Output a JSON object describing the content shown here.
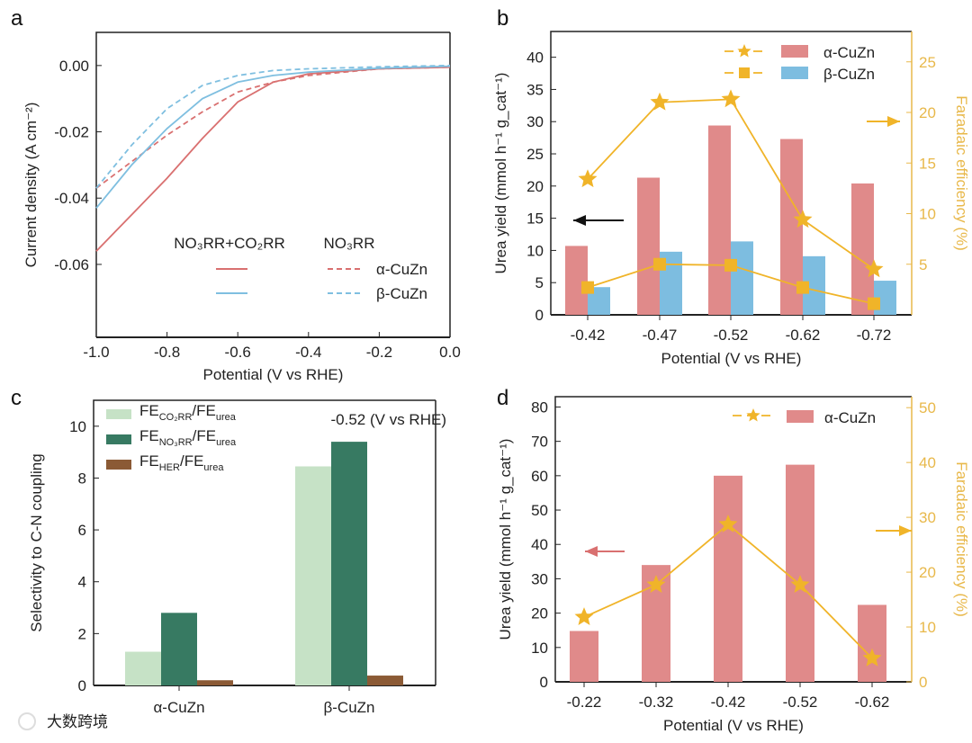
{
  "panel_labels": [
    "a",
    "b",
    "c",
    "d"
  ],
  "watermark": "大数跨境",
  "colors": {
    "alpha": "#e08a8a",
    "beta": "#7dbde0",
    "gold": "#f0b429",
    "gold_text": "#e8b84a",
    "co2rr": "#c6e2c6",
    "no3rr": "#377a62",
    "her": "#8b5a35",
    "red": "#d97070",
    "blue": "#7fbfe0"
  },
  "chart_data": [
    {
      "type": "line",
      "panel": "a",
      "xlabel": "Potential (V vs RHE)",
      "ylabel": "Current density (A cm⁻²)",
      "xlim": [
        -1.0,
        0.0
      ],
      "ylim": [
        -0.082,
        0.01
      ],
      "xticks": [
        "-1.0",
        "-0.8",
        "-0.6",
        "-0.4",
        "-0.2",
        "0.0"
      ],
      "yticks": [
        "0.00",
        "-0.02",
        "-0.04",
        "-0.06"
      ],
      "legend": {
        "col1": "NO₃RR+CO₂RR",
        "col2": "NO₃RR",
        "row1": "α-CuZn",
        "row2": "β-CuZn"
      },
      "series": [
        {
          "name": "α-CuZn NO3RR+CO2RR",
          "style": "solid",
          "color": "red",
          "x": [
            -1.0,
            -0.9,
            -0.8,
            -0.7,
            -0.6,
            -0.5,
            -0.4,
            -0.2,
            0.0
          ],
          "y": [
            -0.056,
            -0.045,
            -0.034,
            -0.022,
            -0.011,
            -0.005,
            -0.0025,
            -0.001,
            -0.0005
          ]
        },
        {
          "name": "α-CuZn NO3RR",
          "style": "dashed",
          "color": "red",
          "x": [
            -1.0,
            -0.9,
            -0.8,
            -0.7,
            -0.6,
            -0.5,
            -0.4,
            -0.2,
            0.0
          ],
          "y": [
            -0.037,
            -0.029,
            -0.021,
            -0.014,
            -0.008,
            -0.005,
            -0.003,
            -0.001,
            -0.0005
          ]
        },
        {
          "name": "β-CuZn NO3RR+CO2RR",
          "style": "solid",
          "color": "blue",
          "x": [
            -1.0,
            -0.9,
            -0.8,
            -0.7,
            -0.6,
            -0.5,
            -0.4,
            -0.2,
            0.0
          ],
          "y": [
            -0.043,
            -0.03,
            -0.019,
            -0.01,
            -0.005,
            -0.003,
            -0.002,
            -0.0008,
            -0.0002
          ]
        },
        {
          "name": "β-CuZn NO3RR",
          "style": "dashed",
          "color": "blue",
          "x": [
            -1.0,
            -0.9,
            -0.8,
            -0.7,
            -0.6,
            -0.5,
            -0.4,
            -0.2,
            0.0
          ],
          "y": [
            -0.037,
            -0.024,
            -0.013,
            -0.006,
            -0.003,
            -0.0015,
            -0.001,
            -0.0004,
            0.0
          ]
        }
      ]
    },
    {
      "type": "bar",
      "panel": "b",
      "categories": [
        "-0.42",
        "-0.47",
        "-0.52",
        "-0.62",
        "-0.72"
      ],
      "xlabel": "Potential (V vs RHE)",
      "ylabel": "Urea yield (mmol h⁻¹ g_cat⁻¹)",
      "y2label": "Faradaic efficiency (%)",
      "ylim": [
        0,
        44
      ],
      "y2lim": [
        0,
        28
      ],
      "yticks": [
        "0",
        "5",
        "10",
        "15",
        "20",
        "25",
        "30",
        "35",
        "40"
      ],
      "y2ticks": [
        "5",
        "10",
        "15",
        "20",
        "25"
      ],
      "series": [
        {
          "name": "α-CuZn",
          "values": [
            10.7,
            21.3,
            29.4,
            27.3,
            20.4
          ]
        },
        {
          "name": "β-CuZn",
          "values": [
            4.3,
            9.8,
            11.4,
            9.1,
            5.3
          ]
        }
      ],
      "fe_series": [
        {
          "name": "α-CuZn FE",
          "marker": "star",
          "values": [
            13.4,
            21.0,
            21.3,
            9.4,
            4.5
          ]
        },
        {
          "name": "β-CuZn FE",
          "marker": "square",
          "values": [
            2.7,
            5.0,
            4.9,
            2.7,
            1.1
          ]
        }
      ]
    },
    {
      "type": "bar",
      "panel": "c",
      "categories": [
        "α-CuZn",
        "β-CuZn"
      ],
      "ylabel": "Selectivity to C-N coupling",
      "ylim": [
        0,
        11
      ],
      "yticks": [
        "0",
        "2",
        "4",
        "6",
        "8",
        "10"
      ],
      "annotation": "-0.52 (V vs RHE)",
      "series": [
        {
          "name": "FE_CO2RR/FE_urea",
          "main": "FE",
          "sub": "CO₂RR",
          "main2": "/FE",
          "sub2": "urea",
          "values": [
            1.3,
            8.45
          ]
        },
        {
          "name": "FE_NO3RR/FE_urea",
          "main": "FE",
          "sub": "NO₃RR",
          "main2": "/FE",
          "sub2": "urea",
          "values": [
            2.8,
            9.4
          ]
        },
        {
          "name": "FE_HER/FE_urea",
          "main": "FE",
          "sub": "HER",
          "main2": "/FE",
          "sub2": "urea",
          "values": [
            0.2,
            0.38
          ]
        }
      ]
    },
    {
      "type": "bar",
      "panel": "d",
      "categories": [
        "-0.22",
        "-0.32",
        "-0.42",
        "-0.52",
        "-0.62"
      ],
      "xlabel": "Potential (V vs RHE)",
      "ylabel": "Urea yield (mmol h⁻¹ g_cat⁻¹)",
      "y2label": "Faradaic efficiency (%)",
      "ylim": [
        0,
        83
      ],
      "y2lim": [
        0,
        52
      ],
      "yticks": [
        "0",
        "10",
        "20",
        "30",
        "40",
        "50",
        "60",
        "70",
        "80"
      ],
      "y2ticks": [
        "0",
        "10",
        "20",
        "30",
        "40",
        "50"
      ],
      "series": [
        {
          "name": "α-CuZn",
          "values": [
            14.8,
            34.0,
            60.0,
            63.2,
            22.4
          ]
        }
      ],
      "fe_series": [
        {
          "name": "α-CuZn FE",
          "marker": "star",
          "values": [
            11.8,
            17.7,
            28.7,
            17.7,
            4.3
          ]
        }
      ]
    }
  ]
}
